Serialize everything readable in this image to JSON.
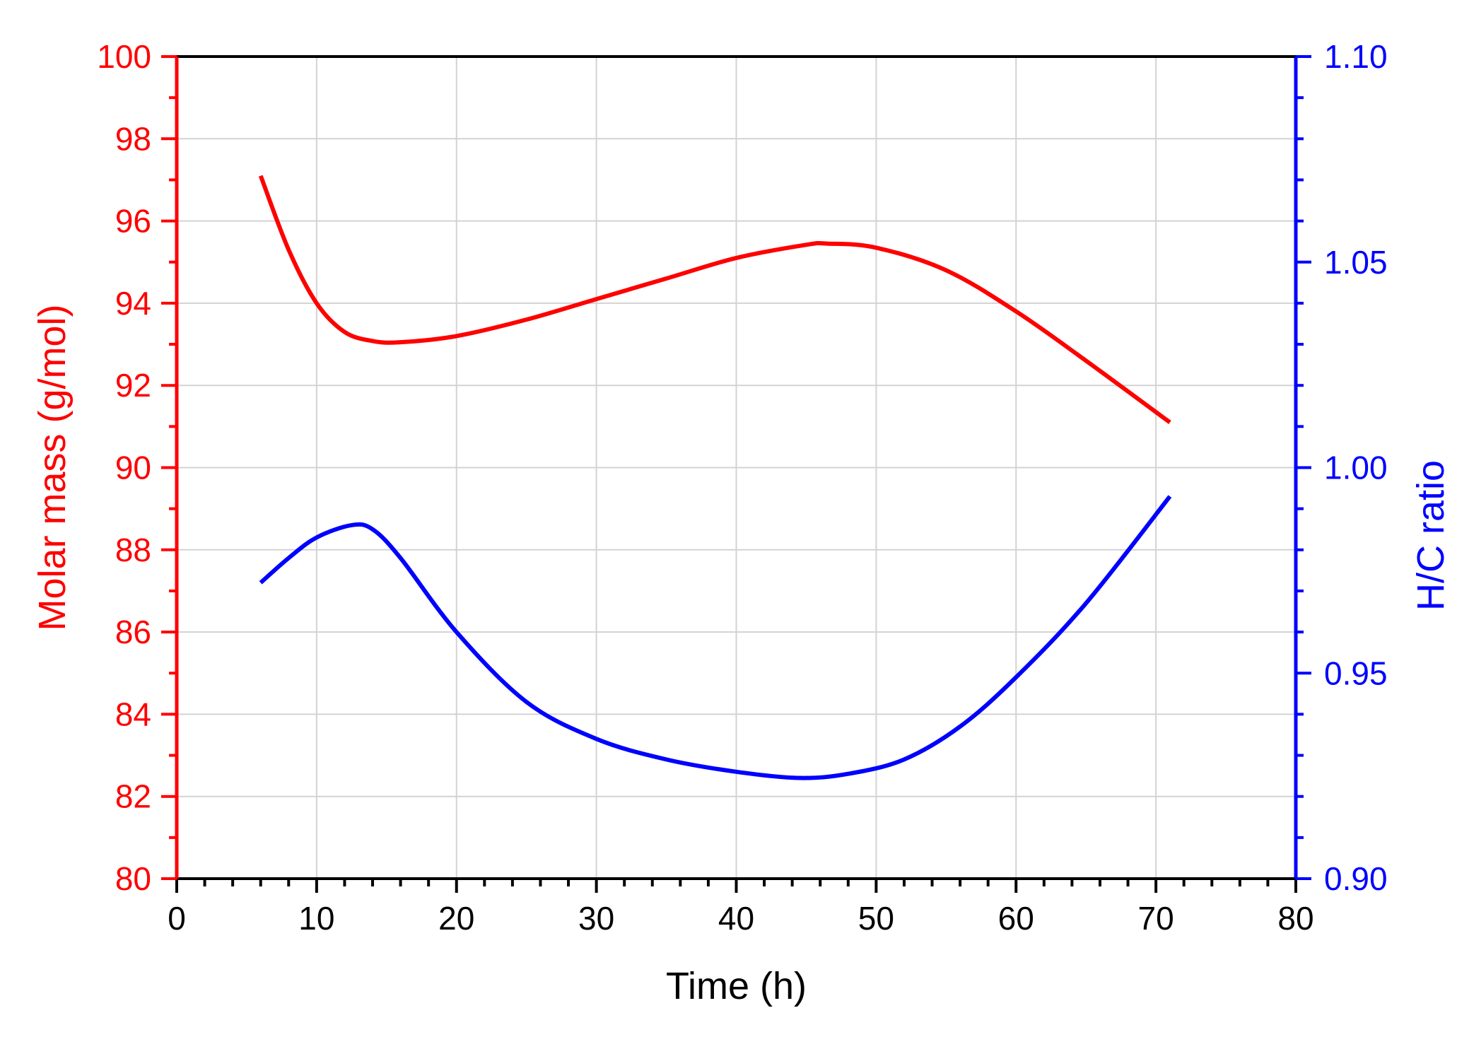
{
  "chart_data": {
    "type": "line",
    "xlabel": "Time (h)",
    "ylabel_left": "Molar mass (g/mol)",
    "ylabel_right": "H/C ratio",
    "xlim": [
      0,
      80
    ],
    "ylim_left": [
      80,
      100
    ],
    "ylim_right": [
      0.9,
      1.1
    ],
    "grid": true,
    "x_ticks": [
      "0",
      "10",
      "20",
      "30",
      "40",
      "50",
      "60",
      "70",
      "80"
    ],
    "y_left_ticks": [
      "80",
      "82",
      "84",
      "86",
      "88",
      "90",
      "92",
      "94",
      "96",
      "98",
      "100"
    ],
    "y_right_ticks": [
      "0.90",
      "0.95",
      "1.00",
      "1.05",
      "1.10"
    ],
    "series": [
      {
        "axis": "left",
        "color": "#ff0000",
        "x": [
          6,
          8,
          10,
          12,
          14,
          16,
          20,
          25,
          30,
          35,
          40,
          45,
          46.5,
          50,
          55,
          60,
          65,
          71
        ],
        "y": [
          97.1,
          95.3,
          94.0,
          93.3,
          93.08,
          93.05,
          93.2,
          93.6,
          94.1,
          94.6,
          95.1,
          95.42,
          95.45,
          95.35,
          94.8,
          93.8,
          92.6,
          91.1
        ]
      },
      {
        "axis": "right",
        "color": "#0000ff",
        "x": [
          6,
          8,
          10,
          12.5,
          14,
          16,
          20,
          25,
          30,
          35,
          40,
          44.5,
          48,
          52,
          56,
          60,
          65,
          71
        ],
        "y": [
          0.972,
          0.978,
          0.983,
          0.986,
          0.985,
          0.978,
          0.96,
          0.943,
          0.934,
          0.929,
          0.926,
          0.9245,
          0.9255,
          0.929,
          0.937,
          0.949,
          0.967,
          0.993
        ]
      }
    ]
  },
  "colors": {
    "left_axis": "#ff0000",
    "right_axis": "#0000ff",
    "grid": "#d3d3d3"
  }
}
